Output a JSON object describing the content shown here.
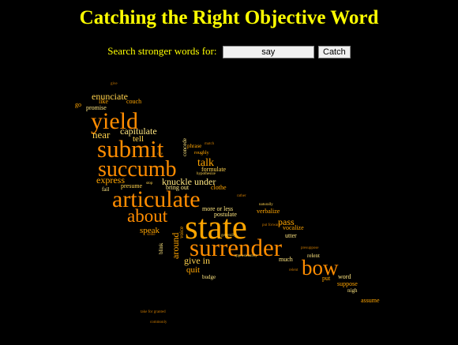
{
  "page": {
    "title": "Catching the Right Objective Word",
    "search_label": "Search stronger words for:",
    "search_value": "say",
    "catch_button": "Catch"
  },
  "colors": {
    "title": "#ffff00",
    "big": "#ff8c00",
    "mid": "#ffa500",
    "light": "#ffd24d",
    "pale": "#ffe680",
    "dim": "#c87800"
  },
  "cloud": [
    {
      "text": "yield"
    },
    {
      "text": "submit"
    },
    {
      "text": "succumb"
    },
    {
      "text": "articulate"
    },
    {
      "text": "about"
    },
    {
      "text": "state"
    },
    {
      "text": "surrender"
    },
    {
      "text": "bow"
    },
    {
      "text": "enunciate"
    },
    {
      "text": "capitulate"
    },
    {
      "text": "near"
    },
    {
      "text": "tell"
    },
    {
      "text": "talk"
    },
    {
      "text": "express"
    },
    {
      "text": "knuckle under"
    },
    {
      "text": "speak"
    },
    {
      "text": "around"
    },
    {
      "text": "give in"
    },
    {
      "text": "quit"
    },
    {
      "text": "pass"
    },
    {
      "text": "couch"
    },
    {
      "text": "promise"
    },
    {
      "text": "like"
    },
    {
      "text": "formulate"
    },
    {
      "text": "presume"
    },
    {
      "text": "bring out"
    },
    {
      "text": "clothe"
    },
    {
      "text": "more or less"
    },
    {
      "text": "postulate"
    },
    {
      "text": "verbalize"
    },
    {
      "text": "vocalize"
    },
    {
      "text": "utter"
    },
    {
      "text": "relent"
    },
    {
      "text": "much"
    },
    {
      "text": "word"
    },
    {
      "text": "put"
    },
    {
      "text": "suppose"
    },
    {
      "text": "nigh"
    },
    {
      "text": "assume"
    },
    {
      "text": "budge"
    },
    {
      "text": "phrase"
    },
    {
      "text": "roughly"
    },
    {
      "text": "concede"
    },
    {
      "text": "fail"
    },
    {
      "text": "voice"
    },
    {
      "text": "blink"
    },
    {
      "text": "go"
    },
    {
      "text": "generally"
    },
    {
      "text": "approximately"
    },
    {
      "text": "naturally"
    },
    {
      "text": "rather"
    },
    {
      "text": "cite"
    },
    {
      "text": "hypothesize"
    },
    {
      "text": "match"
    },
    {
      "text": "give"
    },
    {
      "text": "stop"
    },
    {
      "text": "some"
    },
    {
      "text": "put forward"
    },
    {
      "text": "presuppose"
    },
    {
      "text": "relent"
    },
    {
      "text": "commonly"
    },
    {
      "text": "take for granted"
    }
  ]
}
